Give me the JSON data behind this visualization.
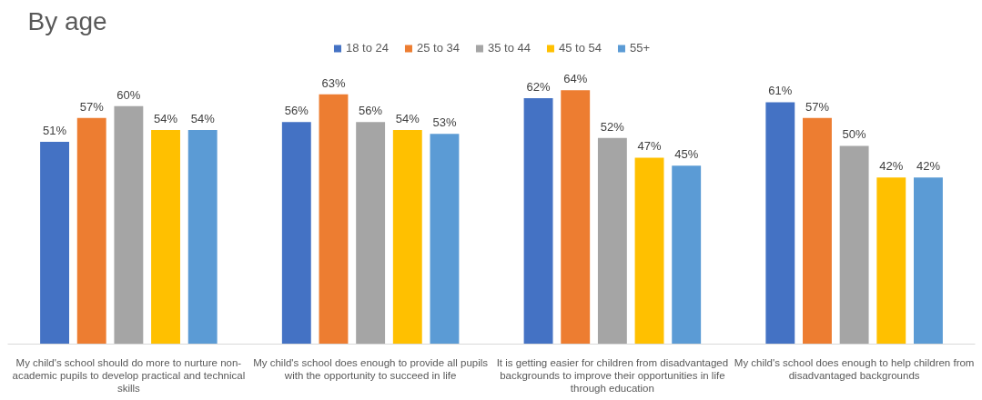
{
  "chart_data": {
    "type": "bar",
    "title": "By age",
    "categories": [
      "My child's school should do more to nurture non-academic pupils to develop practical and technical skills",
      "My child's school does enough to provide all pupils with the opportunity to succeed in life",
      "It is getting easier for children from disadvantaged backgrounds to improve their opportunities in life through education",
      "My child's school does enough to help children from disadvantaged backgrounds"
    ],
    "series": [
      {
        "name": "18 to 24",
        "color": "#4472c4",
        "values": [
          51,
          56,
          62,
          61
        ],
        "value_labels": [
          "51%",
          "56%",
          "62%",
          "61%"
        ]
      },
      {
        "name": "25 to 34",
        "color": "#ed7d31",
        "values": [
          57,
          63,
          64,
          57
        ],
        "value_labels": [
          "57%",
          "63%",
          "64%",
          "57%"
        ]
      },
      {
        "name": "35 to 44",
        "color": "#a5a5a5",
        "values": [
          60,
          56,
          52,
          50
        ],
        "value_labels": [
          "60%",
          "56%",
          "52%",
          "50%"
        ]
      },
      {
        "name": "45 to 54",
        "color": "#ffc000",
        "values": [
          54,
          54,
          47,
          42
        ],
        "value_labels": [
          "54%",
          "54%",
          "47%",
          "42%"
        ]
      },
      {
        "name": "55+",
        "color": "#5b9bd5",
        "values": [
          54,
          53,
          45,
          42
        ],
        "value_labels": [
          "54%",
          "53%",
          "45%",
          "42%"
        ]
      }
    ],
    "legend": "top"
  }
}
